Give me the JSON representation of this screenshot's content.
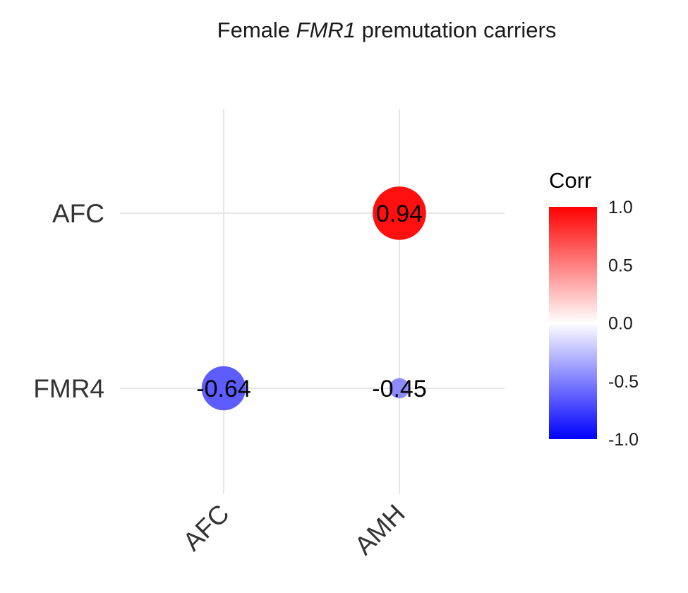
{
  "chart_data": {
    "type": "heatmap",
    "subtype": "correlation-circles",
    "title": {
      "prefix": "Female ",
      "italic": "FMR1",
      "suffix": " premutation carriers"
    },
    "x_categories": [
      "AFC",
      "AMH"
    ],
    "y_categories": [
      "AFC",
      "FMR4"
    ],
    "cells": [
      {
        "x": "AMH",
        "y": "AFC",
        "value": 0.94,
        "label": "0.94"
      },
      {
        "x": "AFC",
        "y": "FMR4",
        "value": -0.64,
        "label": "-0.64"
      },
      {
        "x": "AMH",
        "y": "FMR4",
        "value": -0.45,
        "label": "-0.45"
      }
    ],
    "legend": {
      "title": "Corr",
      "placement": "right",
      "range": [
        -1.0,
        1.0
      ],
      "ticks": [
        "1.0",
        "0.5",
        "0.0",
        "-0.5",
        "-1.0"
      ],
      "colors": {
        "low": "#0000ff",
        "mid": "#ffffff",
        "high": "#ff0000"
      }
    },
    "grid": true
  }
}
